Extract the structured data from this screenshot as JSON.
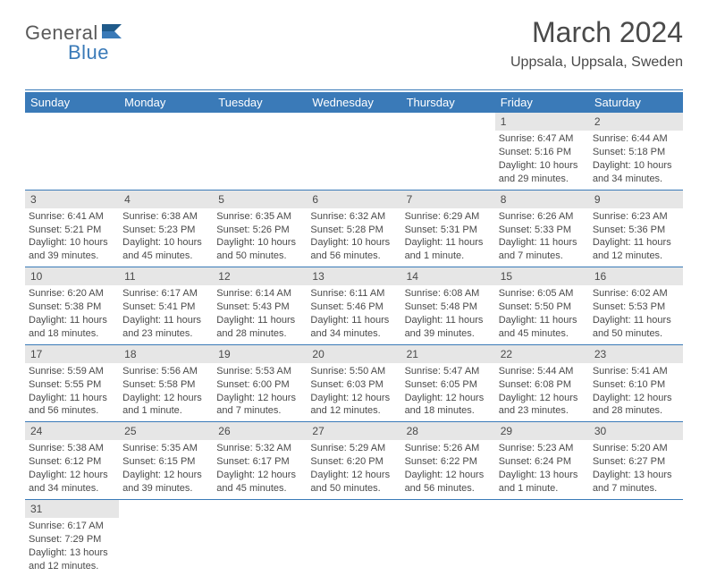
{
  "brand": {
    "part1": "General",
    "part2": "Blue"
  },
  "title": "March 2024",
  "subtitle": "Uppsala, Uppsala, Sweden",
  "colors": {
    "accent": "#3a7ab8",
    "header_bg": "#3a7ab8",
    "daynum_bg": "#e6e6e6",
    "text": "#4a4a4a"
  },
  "days_of_week": [
    "Sunday",
    "Monday",
    "Tuesday",
    "Wednesday",
    "Thursday",
    "Friday",
    "Saturday"
  ],
  "first_weekday_index": 5,
  "num_days": 31,
  "cells": {
    "1": {
      "sunrise": "Sunrise: 6:47 AM",
      "sunset": "Sunset: 5:16 PM",
      "daylight": "Daylight: 10 hours and 29 minutes."
    },
    "2": {
      "sunrise": "Sunrise: 6:44 AM",
      "sunset": "Sunset: 5:18 PM",
      "daylight": "Daylight: 10 hours and 34 minutes."
    },
    "3": {
      "sunrise": "Sunrise: 6:41 AM",
      "sunset": "Sunset: 5:21 PM",
      "daylight": "Daylight: 10 hours and 39 minutes."
    },
    "4": {
      "sunrise": "Sunrise: 6:38 AM",
      "sunset": "Sunset: 5:23 PM",
      "daylight": "Daylight: 10 hours and 45 minutes."
    },
    "5": {
      "sunrise": "Sunrise: 6:35 AM",
      "sunset": "Sunset: 5:26 PM",
      "daylight": "Daylight: 10 hours and 50 minutes."
    },
    "6": {
      "sunrise": "Sunrise: 6:32 AM",
      "sunset": "Sunset: 5:28 PM",
      "daylight": "Daylight: 10 hours and 56 minutes."
    },
    "7": {
      "sunrise": "Sunrise: 6:29 AM",
      "sunset": "Sunset: 5:31 PM",
      "daylight": "Daylight: 11 hours and 1 minute."
    },
    "8": {
      "sunrise": "Sunrise: 6:26 AM",
      "sunset": "Sunset: 5:33 PM",
      "daylight": "Daylight: 11 hours and 7 minutes."
    },
    "9": {
      "sunrise": "Sunrise: 6:23 AM",
      "sunset": "Sunset: 5:36 PM",
      "daylight": "Daylight: 11 hours and 12 minutes."
    },
    "10": {
      "sunrise": "Sunrise: 6:20 AM",
      "sunset": "Sunset: 5:38 PM",
      "daylight": "Daylight: 11 hours and 18 minutes."
    },
    "11": {
      "sunrise": "Sunrise: 6:17 AM",
      "sunset": "Sunset: 5:41 PM",
      "daylight": "Daylight: 11 hours and 23 minutes."
    },
    "12": {
      "sunrise": "Sunrise: 6:14 AM",
      "sunset": "Sunset: 5:43 PM",
      "daylight": "Daylight: 11 hours and 28 minutes."
    },
    "13": {
      "sunrise": "Sunrise: 6:11 AM",
      "sunset": "Sunset: 5:46 PM",
      "daylight": "Daylight: 11 hours and 34 minutes."
    },
    "14": {
      "sunrise": "Sunrise: 6:08 AM",
      "sunset": "Sunset: 5:48 PM",
      "daylight": "Daylight: 11 hours and 39 minutes."
    },
    "15": {
      "sunrise": "Sunrise: 6:05 AM",
      "sunset": "Sunset: 5:50 PM",
      "daylight": "Daylight: 11 hours and 45 minutes."
    },
    "16": {
      "sunrise": "Sunrise: 6:02 AM",
      "sunset": "Sunset: 5:53 PM",
      "daylight": "Daylight: 11 hours and 50 minutes."
    },
    "17": {
      "sunrise": "Sunrise: 5:59 AM",
      "sunset": "Sunset: 5:55 PM",
      "daylight": "Daylight: 11 hours and 56 minutes."
    },
    "18": {
      "sunrise": "Sunrise: 5:56 AM",
      "sunset": "Sunset: 5:58 PM",
      "daylight": "Daylight: 12 hours and 1 minute."
    },
    "19": {
      "sunrise": "Sunrise: 5:53 AM",
      "sunset": "Sunset: 6:00 PM",
      "daylight": "Daylight: 12 hours and 7 minutes."
    },
    "20": {
      "sunrise": "Sunrise: 5:50 AM",
      "sunset": "Sunset: 6:03 PM",
      "daylight": "Daylight: 12 hours and 12 minutes."
    },
    "21": {
      "sunrise": "Sunrise: 5:47 AM",
      "sunset": "Sunset: 6:05 PM",
      "daylight": "Daylight: 12 hours and 18 minutes."
    },
    "22": {
      "sunrise": "Sunrise: 5:44 AM",
      "sunset": "Sunset: 6:08 PM",
      "daylight": "Daylight: 12 hours and 23 minutes."
    },
    "23": {
      "sunrise": "Sunrise: 5:41 AM",
      "sunset": "Sunset: 6:10 PM",
      "daylight": "Daylight: 12 hours and 28 minutes."
    },
    "24": {
      "sunrise": "Sunrise: 5:38 AM",
      "sunset": "Sunset: 6:12 PM",
      "daylight": "Daylight: 12 hours and 34 minutes."
    },
    "25": {
      "sunrise": "Sunrise: 5:35 AM",
      "sunset": "Sunset: 6:15 PM",
      "daylight": "Daylight: 12 hours and 39 minutes."
    },
    "26": {
      "sunrise": "Sunrise: 5:32 AM",
      "sunset": "Sunset: 6:17 PM",
      "daylight": "Daylight: 12 hours and 45 minutes."
    },
    "27": {
      "sunrise": "Sunrise: 5:29 AM",
      "sunset": "Sunset: 6:20 PM",
      "daylight": "Daylight: 12 hours and 50 minutes."
    },
    "28": {
      "sunrise": "Sunrise: 5:26 AM",
      "sunset": "Sunset: 6:22 PM",
      "daylight": "Daylight: 12 hours and 56 minutes."
    },
    "29": {
      "sunrise": "Sunrise: 5:23 AM",
      "sunset": "Sunset: 6:24 PM",
      "daylight": "Daylight: 13 hours and 1 minute."
    },
    "30": {
      "sunrise": "Sunrise: 5:20 AM",
      "sunset": "Sunset: 6:27 PM",
      "daylight": "Daylight: 13 hours and 7 minutes."
    },
    "31": {
      "sunrise": "Sunrise: 6:17 AM",
      "sunset": "Sunset: 7:29 PM",
      "daylight": "Daylight: 13 hours and 12 minutes."
    }
  }
}
